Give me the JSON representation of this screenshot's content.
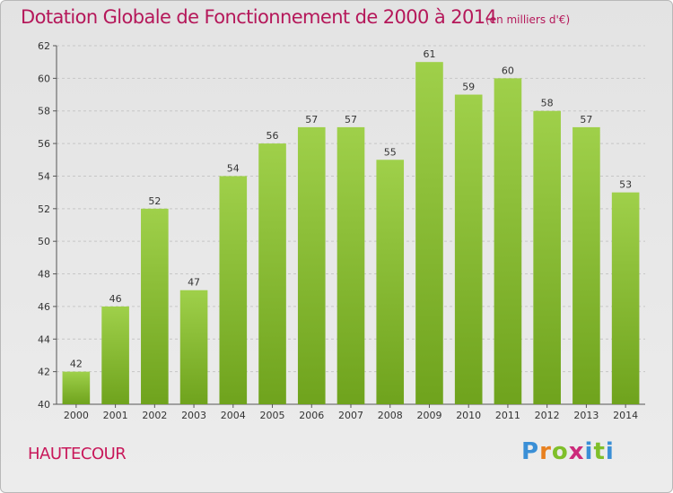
{
  "title": "Dotation Globale de Fonctionnement de 2000 à 2014",
  "subtitle": "(en milliers d'€)",
  "commune": "HAUTECOUR",
  "logo": {
    "text": "Proxiti",
    "letter_colors": [
      "#3a8fd6",
      "#e8801f",
      "#7fbf2a",
      "#cc2a7a",
      "#3a8fd6",
      "#7fbf2a",
      "#3a8fd6"
    ]
  },
  "colors": {
    "bar_top": "#9fd04a",
    "bar_bottom": "#6fa31d",
    "title": "#b5185a",
    "axis_text": "#333333",
    "grid": "#c6c6c6"
  },
  "chart_data": {
    "type": "bar",
    "categories": [
      "2000",
      "2001",
      "2002",
      "2003",
      "2004",
      "2005",
      "2006",
      "2007",
      "2008",
      "2009",
      "2010",
      "2011",
      "2012",
      "2013",
      "2014"
    ],
    "values": [
      42,
      46,
      52,
      47,
      54,
      56,
      57,
      57,
      55,
      61,
      59,
      60,
      58,
      57,
      53
    ],
    "ylim": [
      40,
      62
    ],
    "yticks": [
      40,
      42,
      44,
      46,
      48,
      50,
      52,
      54,
      56,
      58,
      60,
      62
    ],
    "grid": true,
    "xlabel": "",
    "ylabel": ""
  }
}
